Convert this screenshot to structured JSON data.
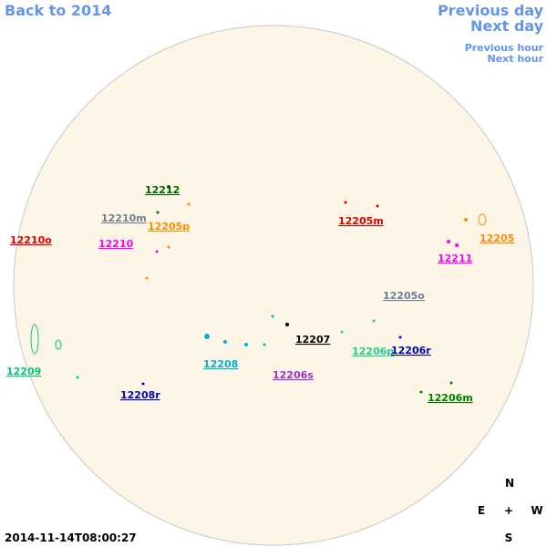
{
  "nav": {
    "back": "Back to 2014",
    "previous_day": "Previous day",
    "next_day": "Next day",
    "previous_hour": "Previous hour",
    "next_hour": "Next hour"
  },
  "regions": [
    "12212",
    "12210m",
    "12205p",
    "12210o",
    "12210",
    "12205m",
    "12205",
    "12211",
    "12205o",
    "12207",
    "12209",
    "12208",
    "12206p",
    "12206r",
    "12206s",
    "12208r",
    "12206m"
  ],
  "compass": {
    "north": "N",
    "east": "E",
    "center": "+",
    "west": "W",
    "south": "S"
  },
  "timestamp": "2014-11-14T08:00:27"
}
